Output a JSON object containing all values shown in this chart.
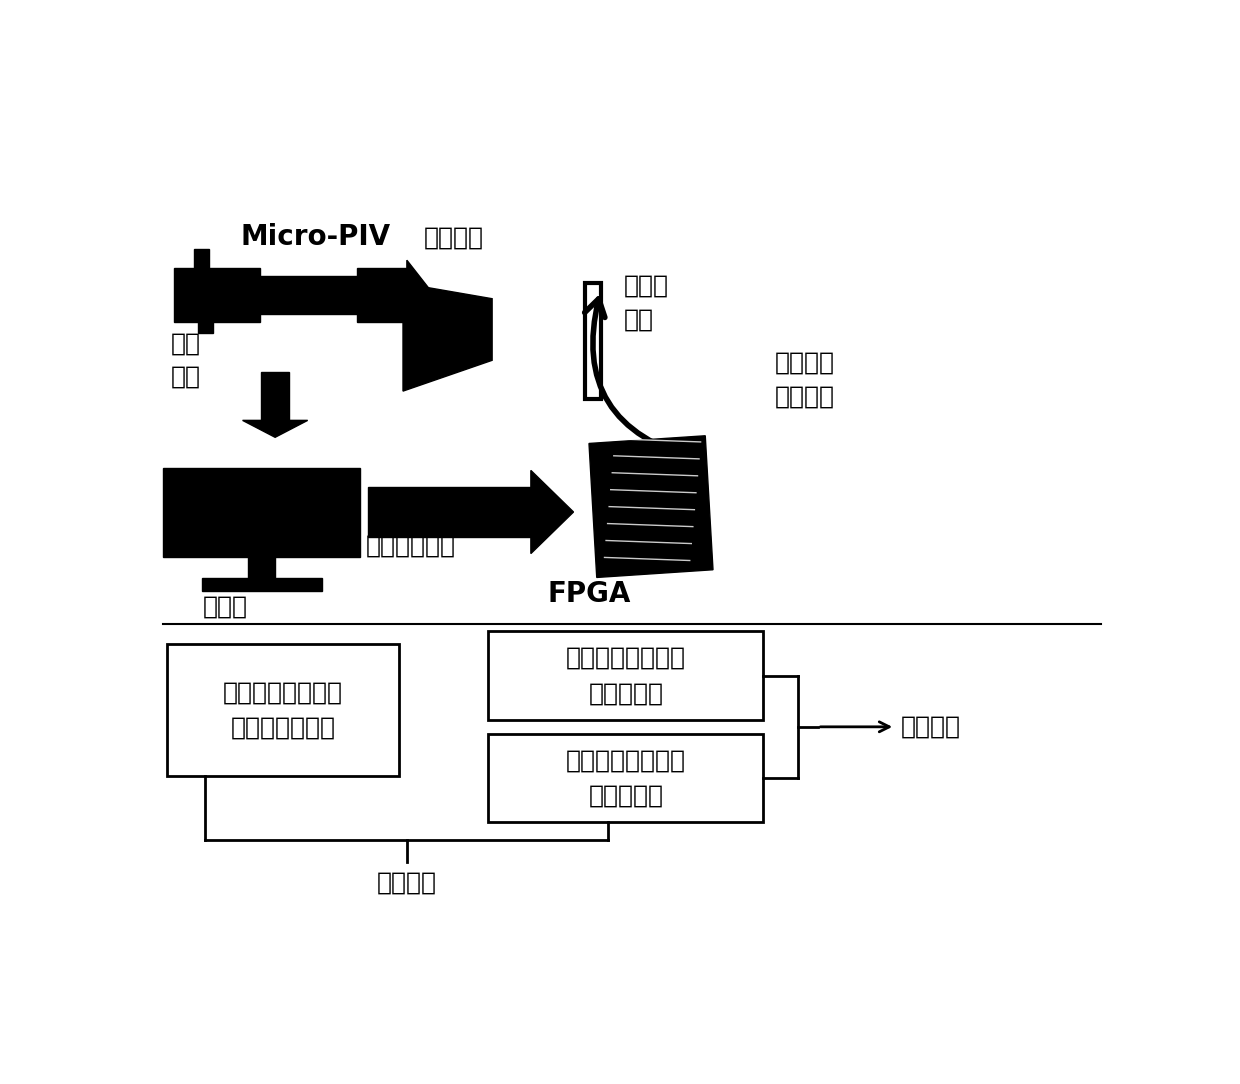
{
  "bg_color": "#ffffff",
  "labels": {
    "micro_piv": "Micro-PIV",
    "fan_she": "反射光路",
    "wei_liu": "微流控\n芯片",
    "shi_jue": "视觉\n测量",
    "zuo_zhan": "工作站",
    "fpga": "FPGA",
    "zui_you": "最优控制结果",
    "shu_chu": "输出指令\n驱动微泵",
    "box1": "浓度调节模型的滚\n动跟踪控制",
    "box2": "基于深度学习的滚\n动跟踪控制",
    "box_left": "粒子移动时空演化\n模型的最优控制",
    "xin_xi": "信息融合",
    "chuan_ji": "串级控制"
  },
  "font_size_large": 20,
  "font_size_label": 18,
  "font_size_box": 18,
  "font_size_small": 15
}
